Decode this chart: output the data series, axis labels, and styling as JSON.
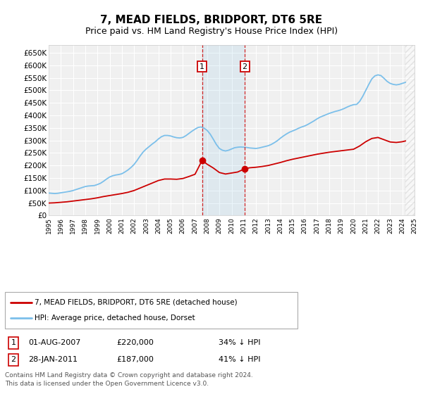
{
  "title": "7, MEAD FIELDS, BRIDPORT, DT6 5RE",
  "subtitle": "Price paid vs. HM Land Registry's House Price Index (HPI)",
  "title_fontsize": 11,
  "subtitle_fontsize": 9,
  "ylim": [
    0,
    680000
  ],
  "yticks": [
    0,
    50000,
    100000,
    150000,
    200000,
    250000,
    300000,
    350000,
    400000,
    450000,
    500000,
    550000,
    600000,
    650000
  ],
  "ytick_labels": [
    "£0",
    "£50K",
    "£100K",
    "£150K",
    "£200K",
    "£250K",
    "£300K",
    "£350K",
    "£400K",
    "£450K",
    "£500K",
    "£550K",
    "£600K",
    "£650K"
  ],
  "hpi_color": "#7bbfea",
  "property_color": "#cc0000",
  "background_color": "#ffffff",
  "plot_bg_color": "#f0f0f0",
  "grid_color": "#ffffff",
  "transaction1_x": 2007.58,
  "transaction1_price": 220000,
  "transaction2_x": 2011.08,
  "transaction2_price": 187000,
  "footnote": "Contains HM Land Registry data © Crown copyright and database right 2024.\nThis data is licensed under the Open Government Licence v3.0.",
  "legend_property": "7, MEAD FIELDS, BRIDPORT, DT6 5RE (detached house)",
  "legend_hpi": "HPI: Average price, detached house, Dorset",
  "table_row1": [
    "1",
    "01-AUG-2007",
    "£220,000",
    "34% ↓ HPI"
  ],
  "table_row2": [
    "2",
    "28-JAN-2011",
    "£187,000",
    "41% ↓ HPI"
  ],
  "hpi_data": {
    "years": [
      1995.0,
      1995.25,
      1995.5,
      1995.75,
      1996.0,
      1996.25,
      1996.5,
      1996.75,
      1997.0,
      1997.25,
      1997.5,
      1997.75,
      1998.0,
      1998.25,
      1998.5,
      1998.75,
      1999.0,
      1999.25,
      1999.5,
      1999.75,
      2000.0,
      2000.25,
      2000.5,
      2000.75,
      2001.0,
      2001.25,
      2001.5,
      2001.75,
      2002.0,
      2002.25,
      2002.5,
      2002.75,
      2003.0,
      2003.25,
      2003.5,
      2003.75,
      2004.0,
      2004.25,
      2004.5,
      2004.75,
      2005.0,
      2005.25,
      2005.5,
      2005.75,
      2006.0,
      2006.25,
      2006.5,
      2006.75,
      2007.0,
      2007.25,
      2007.5,
      2007.75,
      2008.0,
      2008.25,
      2008.5,
      2008.75,
      2009.0,
      2009.25,
      2009.5,
      2009.75,
      2010.0,
      2010.25,
      2010.5,
      2010.75,
      2011.0,
      2011.25,
      2011.5,
      2011.75,
      2012.0,
      2012.25,
      2012.5,
      2012.75,
      2013.0,
      2013.25,
      2013.5,
      2013.75,
      2014.0,
      2014.25,
      2014.5,
      2014.75,
      2015.0,
      2015.25,
      2015.5,
      2015.75,
      2016.0,
      2016.25,
      2016.5,
      2016.75,
      2017.0,
      2017.25,
      2017.5,
      2017.75,
      2018.0,
      2018.25,
      2018.5,
      2018.75,
      2019.0,
      2019.25,
      2019.5,
      2019.75,
      2020.0,
      2020.25,
      2020.5,
      2020.75,
      2021.0,
      2021.25,
      2021.5,
      2021.75,
      2022.0,
      2022.25,
      2022.5,
      2022.75,
      2023.0,
      2023.25,
      2023.5,
      2023.75,
      2024.0,
      2024.25
    ],
    "values": [
      90000,
      89000,
      88000,
      89000,
      91000,
      93000,
      95000,
      97000,
      100000,
      104000,
      108000,
      112000,
      116000,
      118000,
      119000,
      120000,
      124000,
      129000,
      137000,
      146000,
      154000,
      159000,
      162000,
      164000,
      167000,
      174000,
      182000,
      192000,
      204000,
      220000,
      238000,
      254000,
      266000,
      276000,
      286000,
      295000,
      306000,
      315000,
      320000,
      320000,
      318000,
      314000,
      311000,
      310000,
      312000,
      319000,
      328000,
      337000,
      345000,
      352000,
      354000,
      349000,
      340000,
      325000,
      305000,
      284000,
      268000,
      261000,
      258000,
      261000,
      266000,
      271000,
      273000,
      274000,
      273000,
      272000,
      270000,
      269000,
      268000,
      270000,
      273000,
      276000,
      279000,
      284000,
      291000,
      299000,
      309000,
      318000,
      326000,
      333000,
      338000,
      343000,
      349000,
      354000,
      358000,
      364000,
      371000,
      378000,
      386000,
      393000,
      398000,
      403000,
      408000,
      412000,
      416000,
      419000,
      423000,
      428000,
      434000,
      439000,
      443000,
      444000,
      456000,
      476000,
      500000,
      524000,
      546000,
      558000,
      562000,
      559000,
      548000,
      536000,
      528000,
      524000,
      522000,
      524000,
      528000,
      532000
    ]
  },
  "property_data": {
    "years": [
      1995.0,
      1995.5,
      1996.0,
      1996.5,
      1997.0,
      1997.5,
      1998.0,
      1998.5,
      1999.0,
      1999.5,
      2000.0,
      2000.5,
      2001.0,
      2001.5,
      2002.0,
      2002.5,
      2003.0,
      2003.5,
      2004.0,
      2004.5,
      2005.0,
      2005.5,
      2006.0,
      2006.5,
      2007.0,
      2007.58,
      2008.0,
      2008.5,
      2009.0,
      2009.5,
      2010.0,
      2010.5,
      2011.08,
      2011.5,
      2012.0,
      2012.5,
      2013.0,
      2013.5,
      2014.0,
      2014.5,
      2015.0,
      2015.5,
      2016.0,
      2016.5,
      2017.0,
      2017.5,
      2018.0,
      2018.5,
      2019.0,
      2019.5,
      2020.0,
      2020.5,
      2021.0,
      2021.5,
      2022.0,
      2022.5,
      2023.0,
      2023.5,
      2024.0,
      2024.25
    ],
    "values": [
      50000,
      51000,
      53000,
      55000,
      58000,
      61000,
      64000,
      67000,
      71000,
      76000,
      80000,
      84000,
      88000,
      93000,
      100000,
      110000,
      120000,
      130000,
      140000,
      146000,
      146000,
      145000,
      148000,
      156000,
      165000,
      220000,
      205000,
      190000,
      172000,
      166000,
      170000,
      174000,
      187000,
      191000,
      193000,
      196000,
      200000,
      206000,
      212000,
      219000,
      225000,
      230000,
      235000,
      240000,
      245000,
      249000,
      253000,
      256000,
      259000,
      262000,
      265000,
      278000,
      295000,
      308000,
      312000,
      303000,
      294000,
      292000,
      295000,
      298000
    ]
  },
  "xmin": 1995,
  "xmax": 2025,
  "xticks": [
    1995,
    1996,
    1997,
    1998,
    1999,
    2000,
    2001,
    2002,
    2003,
    2004,
    2005,
    2006,
    2007,
    2008,
    2009,
    2010,
    2011,
    2012,
    2013,
    2014,
    2015,
    2016,
    2017,
    2018,
    2019,
    2020,
    2021,
    2022,
    2023,
    2024,
    2025
  ]
}
